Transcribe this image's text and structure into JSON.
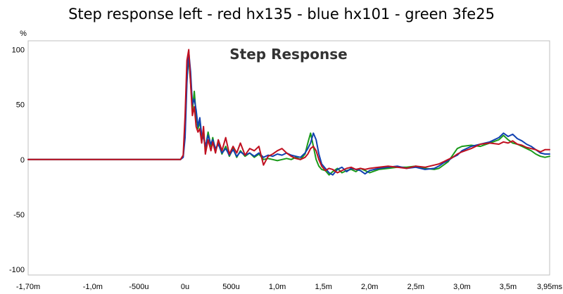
{
  "page": {
    "title": "Step response left - red hx135 - blue hx101 - green 3fe25"
  },
  "chart_data": {
    "type": "line",
    "title": "Step Response",
    "ylabel": "%",
    "xlabel": "",
    "xlim": [
      -1.7,
      3.95
    ],
    "ylim": [
      -105,
      108
    ],
    "grid": true,
    "x_ticks": [
      {
        "value": -1.7,
        "label": "-1,70m"
      },
      {
        "value": -1.0,
        "label": "-1,0m"
      },
      {
        "value": -0.5,
        "label": "-500u"
      },
      {
        "value": 0.0,
        "label": "0u"
      },
      {
        "value": 0.5,
        "label": "500u"
      },
      {
        "value": 1.0,
        "label": "1,0m"
      },
      {
        "value": 1.5,
        "label": "1,5m"
      },
      {
        "value": 2.0,
        "label": "2,0m"
      },
      {
        "value": 2.5,
        "label": "2,5m"
      },
      {
        "value": 3.0,
        "label": "3,0m"
      },
      {
        "value": 3.5,
        "label": "3,5m"
      },
      {
        "value": 3.95,
        "label": "3,95ms"
      }
    ],
    "y_ticks": [
      {
        "value": 100,
        "label": "100"
      },
      {
        "value": 50,
        "label": "50"
      },
      {
        "value": 0,
        "label": "0"
      },
      {
        "value": -50,
        "label": "-50"
      },
      {
        "value": -100,
        "label": "-100"
      }
    ],
    "series": [
      {
        "color": "#1a9a1a",
        "x": [
          -1.7,
          -0.05,
          -0.02,
          0.0,
          0.02,
          0.04,
          0.06,
          0.08,
          0.1,
          0.12,
          0.14,
          0.16,
          0.18,
          0.2,
          0.22,
          0.25,
          0.28,
          0.3,
          0.33,
          0.36,
          0.4,
          0.44,
          0.48,
          0.52,
          0.56,
          0.6,
          0.65,
          0.7,
          0.75,
          0.8,
          0.85,
          0.9,
          0.95,
          1.0,
          1.05,
          1.1,
          1.15,
          1.2,
          1.25,
          1.3,
          1.33,
          1.36,
          1.39,
          1.42,
          1.45,
          1.48,
          1.52,
          1.56,
          1.6,
          1.65,
          1.7,
          1.75,
          1.8,
          1.85,
          1.9,
          1.95,
          2.0,
          2.1,
          2.2,
          2.3,
          2.4,
          2.5,
          2.6,
          2.7,
          2.75,
          2.8,
          2.85,
          2.9,
          2.95,
          3.0,
          3.1,
          3.2,
          3.3,
          3.4,
          3.45,
          3.5,
          3.55,
          3.6,
          3.65,
          3.7,
          3.75,
          3.8,
          3.85,
          3.9,
          3.95
        ],
        "y": [
          0,
          0,
          3,
          25,
          75,
          92,
          70,
          45,
          62,
          40,
          28,
          35,
          18,
          22,
          10,
          25,
          12,
          20,
          8,
          15,
          5,
          12,
          3,
          10,
          2,
          8,
          3,
          6,
          2,
          5,
          0,
          1,
          0,
          -1,
          0,
          1,
          0,
          2,
          0,
          5,
          15,
          24,
          12,
          0,
          -6,
          -9,
          -10,
          -14,
          -11,
          -8,
          -12,
          -10,
          -9,
          -11,
          -8,
          -10,
          -12,
          -9,
          -8,
          -7,
          -7,
          -6,
          -8,
          -9,
          -8,
          -5,
          -2,
          4,
          10,
          12,
          13,
          12,
          15,
          18,
          22,
          18,
          15,
          14,
          12,
          10,
          8,
          5,
          3,
          2,
          3
        ]
      },
      {
        "color": "#1040b0",
        "x": [
          -1.7,
          -0.05,
          -0.02,
          0.0,
          0.02,
          0.04,
          0.06,
          0.08,
          0.1,
          0.12,
          0.14,
          0.16,
          0.18,
          0.2,
          0.22,
          0.25,
          0.28,
          0.3,
          0.33,
          0.36,
          0.4,
          0.44,
          0.48,
          0.52,
          0.56,
          0.6,
          0.65,
          0.7,
          0.75,
          0.8,
          0.85,
          0.9,
          0.95,
          1.0,
          1.05,
          1.1,
          1.15,
          1.2,
          1.25,
          1.3,
          1.33,
          1.36,
          1.39,
          1.42,
          1.45,
          1.48,
          1.52,
          1.56,
          1.6,
          1.65,
          1.7,
          1.75,
          1.8,
          1.85,
          1.9,
          1.95,
          2.0,
          2.1,
          2.2,
          2.3,
          2.4,
          2.5,
          2.6,
          2.7,
          2.75,
          2.8,
          2.85,
          2.9,
          2.95,
          3.0,
          3.1,
          3.2,
          3.3,
          3.4,
          3.45,
          3.5,
          3.55,
          3.6,
          3.65,
          3.7,
          3.75,
          3.8,
          3.85,
          3.9,
          3.95
        ],
        "y": [
          0,
          0,
          2,
          20,
          70,
          98,
          80,
          50,
          55,
          45,
          30,
          38,
          22,
          20,
          12,
          22,
          14,
          18,
          10,
          14,
          6,
          10,
          4,
          9,
          3,
          7,
          4,
          6,
          3,
          6,
          2,
          4,
          3,
          5,
          4,
          6,
          4,
          3,
          2,
          6,
          10,
          15,
          24,
          18,
          5,
          -4,
          -8,
          -12,
          -14,
          -9,
          -7,
          -11,
          -8,
          -9,
          -10,
          -13,
          -10,
          -8,
          -7,
          -6,
          -8,
          -7,
          -9,
          -8,
          -6,
          -3,
          -1,
          2,
          4,
          8,
          12,
          14,
          16,
          20,
          24,
          21,
          23,
          19,
          17,
          14,
          12,
          9,
          6,
          5,
          5
        ]
      },
      {
        "color": "#c01020",
        "x": [
          -1.7,
          -0.05,
          -0.02,
          0.0,
          0.02,
          0.04,
          0.06,
          0.08,
          0.1,
          0.12,
          0.14,
          0.16,
          0.18,
          0.2,
          0.22,
          0.25,
          0.28,
          0.3,
          0.33,
          0.36,
          0.4,
          0.44,
          0.48,
          0.52,
          0.56,
          0.6,
          0.65,
          0.7,
          0.75,
          0.8,
          0.85,
          0.9,
          0.95,
          1.0,
          1.05,
          1.1,
          1.15,
          1.2,
          1.25,
          1.3,
          1.33,
          1.36,
          1.39,
          1.42,
          1.45,
          1.48,
          1.52,
          1.56,
          1.6,
          1.65,
          1.7,
          1.75,
          1.8,
          1.85,
          1.9,
          1.95,
          2.0,
          2.1,
          2.2,
          2.3,
          2.4,
          2.5,
          2.6,
          2.7,
          2.75,
          2.8,
          2.85,
          2.9,
          2.95,
          3.0,
          3.1,
          3.2,
          3.3,
          3.4,
          3.45,
          3.5,
          3.55,
          3.6,
          3.65,
          3.7,
          3.75,
          3.8,
          3.85,
          3.9,
          3.95
        ],
        "y": [
          0,
          0,
          4,
          40,
          90,
          100,
          70,
          40,
          48,
          30,
          25,
          28,
          15,
          30,
          5,
          18,
          8,
          16,
          6,
          18,
          8,
          20,
          5,
          12,
          6,
          15,
          4,
          10,
          8,
          12,
          -5,
          3,
          5,
          8,
          10,
          6,
          3,
          1,
          0,
          2,
          5,
          10,
          12,
          8,
          0,
          -6,
          -10,
          -8,
          -9,
          -12,
          -10,
          -8,
          -7,
          -9,
          -8,
          -9,
          -8,
          -7,
          -6,
          -7,
          -8,
          -6,
          -7,
          -5,
          -4,
          -2,
          0,
          2,
          5,
          7,
          10,
          14,
          15,
          14,
          16,
          15,
          17,
          14,
          13,
          11,
          10,
          9,
          7,
          9,
          9
        ]
      }
    ]
  }
}
